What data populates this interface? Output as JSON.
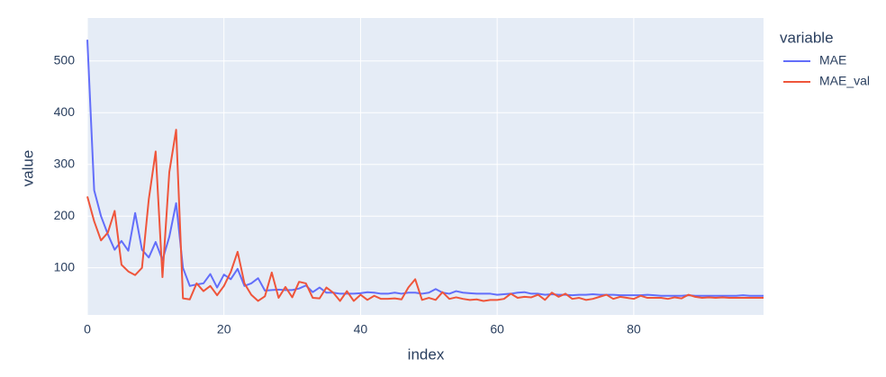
{
  "chart_data": {
    "type": "line",
    "x_label": "index",
    "y_label": "value",
    "legend_title": "variable",
    "x": [
      0,
      1,
      2,
      3,
      4,
      5,
      6,
      7,
      8,
      9,
      10,
      11,
      12,
      13,
      14,
      15,
      16,
      17,
      18,
      19,
      20,
      21,
      22,
      23,
      24,
      25,
      26,
      27,
      28,
      29,
      30,
      31,
      32,
      33,
      34,
      35,
      36,
      37,
      38,
      39,
      40,
      41,
      42,
      43,
      44,
      45,
      46,
      47,
      48,
      49,
      50,
      51,
      52,
      53,
      54,
      55,
      56,
      57,
      58,
      59,
      60,
      61,
      62,
      63,
      64,
      65,
      66,
      67,
      68,
      69,
      70,
      71,
      72,
      73,
      74,
      75,
      76,
      77,
      78,
      79,
      80,
      81,
      82,
      83,
      84,
      85,
      86,
      87,
      88,
      89,
      90,
      91,
      92,
      93,
      94,
      95,
      96,
      97,
      98,
      99
    ],
    "series": [
      {
        "name": "MAE",
        "color": "#636efa",
        "values": [
          541,
          250,
          200,
          165,
          135,
          152,
          133,
          206,
          135,
          120,
          150,
          115,
          160,
          225,
          100,
          65,
          68,
          70,
          88,
          62,
          87,
          78,
          98,
          65,
          70,
          80,
          56,
          57,
          58,
          57,
          57,
          60,
          66,
          53,
          62,
          52,
          52,
          50,
          50,
          50,
          51,
          53,
          52,
          50,
          50,
          52,
          50,
          52,
          52,
          50,
          52,
          59,
          52,
          50,
          55,
          52,
          51,
          50,
          50,
          50,
          48,
          49,
          50,
          52,
          53,
          50,
          50,
          48,
          49,
          48,
          48,
          47,
          48,
          48,
          49,
          48,
          48,
          48,
          47,
          47,
          47,
          47,
          48,
          47,
          46,
          46,
          46,
          46,
          47,
          46,
          46,
          46,
          46,
          46,
          46,
          46,
          47,
          46,
          46,
          46
        ]
      },
      {
        "name": "MAE_val",
        "color": "#EF553B",
        "values": [
          238,
          190,
          153,
          168,
          210,
          106,
          93,
          86,
          100,
          233,
          325,
          82,
          285,
          367,
          41,
          39,
          70,
          55,
          65,
          47,
          65,
          92,
          131,
          70,
          48,
          36,
          45,
          91,
          42,
          63,
          43,
          73,
          70,
          42,
          41,
          62,
          52,
          36,
          55,
          36,
          48,
          38,
          46,
          40,
          40,
          41,
          39,
          62,
          78,
          38,
          42,
          38,
          53,
          40,
          43,
          40,
          38,
          39,
          36,
          38,
          38,
          40,
          50,
          42,
          44,
          43,
          48,
          38,
          52,
          44,
          50,
          40,
          42,
          38,
          40,
          44,
          48,
          40,
          44,
          42,
          40,
          46,
          42,
          42,
          42,
          40,
          43,
          41,
          48,
          44,
          42,
          43,
          42,
          43,
          42,
          42,
          42,
          42,
          42,
          42
        ]
      }
    ],
    "xlim": [
      0,
      99
    ],
    "ylim": [
      9,
      583
    ],
    "xticks": [
      0,
      20,
      40,
      60,
      80
    ],
    "yticks": [
      100,
      200,
      300,
      400,
      500
    ],
    "grid": true
  }
}
